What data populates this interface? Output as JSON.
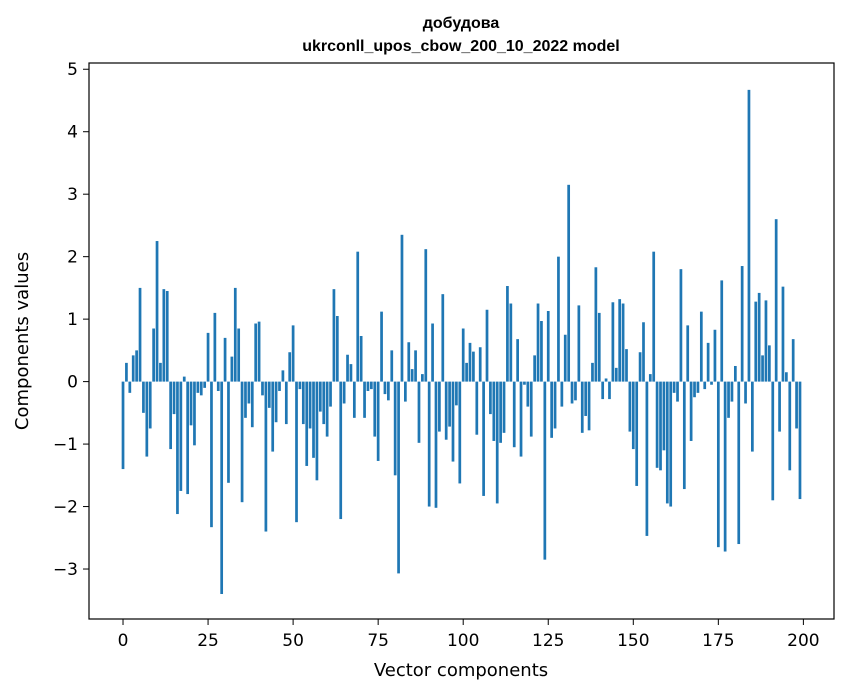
{
  "chart_data": {
    "type": "bar",
    "title": "добудова",
    "subtitle": "ukrconll_upos_cbow_200_10_2022 model",
    "xlabel": "Vector components",
    "ylabel": "Components values",
    "xlim": [
      -10,
      209
    ],
    "ylim": [
      -3.8,
      5.1
    ],
    "xticks": [
      0,
      25,
      50,
      75,
      100,
      125,
      150,
      175,
      200
    ],
    "yticks": [
      -3,
      -2,
      -1,
      0,
      1,
      2,
      3,
      4,
      5
    ],
    "xtick_labels": [
      "0",
      "25",
      "50",
      "75",
      "100",
      "125",
      "150",
      "175",
      "200"
    ],
    "ytick_labels": [
      "−3",
      "−2",
      "−1",
      "0",
      "1",
      "2",
      "3",
      "4",
      "5"
    ],
    "bar_color": "#1f77b4",
    "values": [
      -1.4,
      0.3,
      -0.18,
      0.42,
      0.5,
      1.5,
      -0.5,
      -1.2,
      -0.75,
      0.85,
      2.25,
      0.3,
      1.48,
      1.45,
      -1.08,
      -0.52,
      -2.12,
      -1.75,
      0.08,
      -1.8,
      -0.7,
      -1.02,
      -0.18,
      -0.22,
      -0.1,
      0.78,
      -2.33,
      1.1,
      -0.15,
      -3.4,
      0.7,
      -1.62,
      0.4,
      1.5,
      0.85,
      -1.93,
      -0.58,
      -0.35,
      -0.73,
      0.93,
      0.96,
      -0.22,
      -2.4,
      -0.42,
      -1.12,
      -0.65,
      -0.15,
      0.18,
      -0.68,
      0.47,
      0.9,
      -2.25,
      -0.12,
      -0.68,
      -1.35,
      -0.75,
      -1.22,
      -1.58,
      -0.48,
      -0.68,
      -0.88,
      -0.4,
      1.48,
      1.05,
      -2.2,
      -0.35,
      0.43,
      0.28,
      -0.58,
      2.08,
      0.73,
      -0.58,
      -0.15,
      -0.12,
      -0.88,
      -1.27,
      1.12,
      -0.2,
      -0.3,
      0.5,
      -1.5,
      -3.07,
      2.35,
      -0.32,
      0.63,
      0.2,
      0.5,
      -0.98,
      0.12,
      2.12,
      -2.0,
      0.93,
      -2.02,
      -0.8,
      1.4,
      -0.93,
      -0.72,
      -1.28,
      -0.38,
      -1.63,
      0.85,
      0.3,
      0.62,
      0.48,
      -0.85,
      0.55,
      -1.83,
      1.15,
      -0.52,
      -0.95,
      -1.95,
      -0.98,
      -0.82,
      1.53,
      1.25,
      -1.05,
      0.68,
      -1.2,
      -0.05,
      -0.4,
      -0.88,
      0.42,
      1.25,
      0.97,
      -2.85,
      1.13,
      -0.9,
      -0.75,
      2.0,
      -0.4,
      0.75,
      3.15,
      -0.35,
      -0.3,
      1.22,
      -0.82,
      -0.55,
      -0.78,
      0.3,
      1.83,
      1.1,
      -0.28,
      0.05,
      -0.28,
      1.27,
      0.22,
      1.32,
      1.25,
      0.52,
      -0.8,
      -1.08,
      -1.67,
      0.47,
      0.95,
      -2.47,
      0.12,
      2.08,
      -1.38,
      -1.42,
      -1.1,
      -1.95,
      -2.0,
      -0.18,
      -0.32,
      1.8,
      -1.72,
      0.9,
      -0.95,
      -0.25,
      -0.18,
      1.12,
      -0.12,
      0.62,
      -0.05,
      0.83,
      -2.65,
      1.62,
      -2.72,
      -0.58,
      -0.32,
      0.25,
      -2.6,
      1.85,
      -0.35,
      4.67,
      -1.12,
      1.28,
      1.42,
      0.42,
      1.3,
      0.58,
      -1.9,
      2.6,
      -0.8,
      1.52,
      0.15,
      -1.42,
      0.68,
      -0.75,
      -1.88
    ]
  }
}
